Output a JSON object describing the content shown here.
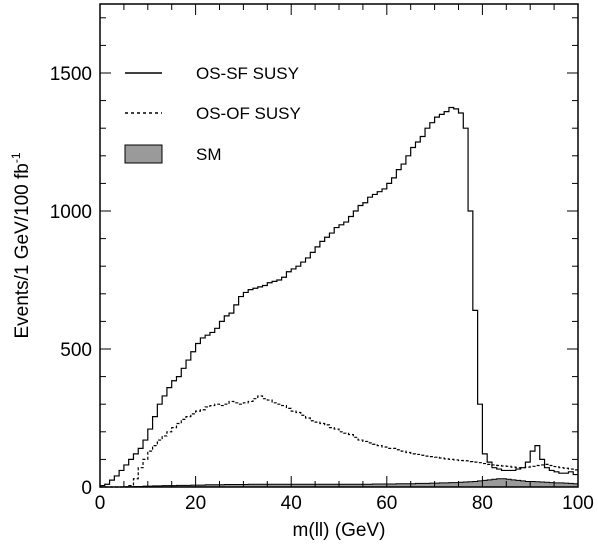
{
  "chart_data": {
    "type": "histogram",
    "title": "",
    "xlabel": "m(ll) (GeV)",
    "ylabel_main": "Events/1 GeV/100 fb",
    "ylabel_sup": "-1",
    "xlim": [
      0,
      100
    ],
    "ylim": [
      0,
      1750
    ],
    "x_ticks": [
      0,
      20,
      40,
      60,
      80,
      100
    ],
    "y_ticks": [
      0,
      500,
      1000,
      1500
    ],
    "x_minor_step": 5,
    "y_minor_step": 100,
    "bin_width": 1,
    "legend_position": "top-left",
    "colors": {
      "os_sf": "#000000",
      "os_of": "#000000",
      "sm_fill": "#9a9a9a"
    },
    "series": [
      {
        "name": "OS-SF SUSY",
        "style": "solid",
        "values": [
          5,
          10,
          25,
          40,
          60,
          80,
          100,
          120,
          140,
          170,
          210,
          255,
          300,
          330,
          360,
          385,
          400,
          430,
          460,
          490,
          520,
          540,
          550,
          560,
          575,
          600,
          620,
          630,
          660,
          690,
          705,
          715,
          720,
          725,
          730,
          740,
          745,
          750,
          760,
          780,
          790,
          800,
          815,
          830,
          850,
          870,
          890,
          905,
          920,
          940,
          950,
          960,
          980,
          1000,
          1020,
          1030,
          1050,
          1060,
          1070,
          1080,
          1100,
          1120,
          1150,
          1170,
          1200,
          1230,
          1250,
          1270,
          1300,
          1320,
          1340,
          1350,
          1360,
          1375,
          1370,
          1355,
          1300,
          1000,
          640,
          300,
          120,
          90,
          70,
          65,
          60,
          60,
          60,
          65,
          70,
          90,
          130,
          150,
          100,
          70,
          60,
          55,
          50,
          50,
          55,
          45
        ]
      },
      {
        "name": "OS-OF SUSY",
        "style": "dashed",
        "values": [
          0,
          0,
          0,
          0,
          0,
          0,
          5,
          30,
          70,
          100,
          130,
          150,
          170,
          185,
          200,
          215,
          230,
          245,
          255,
          265,
          275,
          280,
          290,
          295,
          300,
          295,
          300,
          310,
          305,
          300,
          305,
          310,
          320,
          330,
          320,
          315,
          305,
          300,
          295,
          285,
          275,
          270,
          260,
          250,
          240,
          235,
          230,
          225,
          215,
          210,
          200,
          195,
          190,
          180,
          170,
          165,
          160,
          155,
          150,
          145,
          140,
          140,
          135,
          130,
          125,
          120,
          118,
          115,
          112,
          110,
          108,
          105,
          102,
          100,
          98,
          96,
          95,
          92,
          90,
          88,
          85,
          82,
          80,
          78,
          76,
          75,
          72,
          70,
          70,
          72,
          75,
          78,
          80,
          82,
          78,
          74,
          70,
          68,
          65,
          62
        ]
      },
      {
        "name": "SM",
        "style": "filled",
        "values": [
          0,
          0,
          0,
          0,
          0,
          1,
          1,
          2,
          2,
          3,
          3,
          4,
          4,
          5,
          5,
          5,
          6,
          6,
          6,
          7,
          7,
          7,
          8,
          8,
          8,
          8,
          9,
          9,
          9,
          9,
          9,
          10,
          10,
          10,
          10,
          10,
          10,
          10,
          10,
          10,
          10,
          10,
          10,
          10,
          10,
          10,
          10,
          10,
          10,
          10,
          10,
          10,
          10,
          10,
          10,
          10,
          10,
          11,
          11,
          11,
          11,
          11,
          12,
          12,
          12,
          12,
          13,
          13,
          13,
          14,
          14,
          15,
          15,
          16,
          16,
          17,
          18,
          19,
          20,
          22,
          24,
          26,
          28,
          30,
          30,
          28,
          26,
          24,
          22,
          20,
          20,
          19,
          18,
          17,
          16,
          15,
          15,
          14,
          13,
          12
        ]
      }
    ]
  }
}
